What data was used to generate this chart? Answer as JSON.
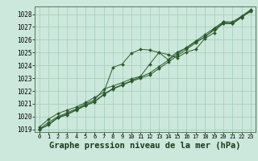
{
  "background_color": "#cce8dc",
  "grid_color": "#aacfbc",
  "line_color": "#2d5a2d",
  "marker_color": "#2d5a2d",
  "xlabel": "Graphe pression niveau de la mer (hPa)",
  "xlabel_fontsize": 7.5,
  "xlim": [
    -0.5,
    23.5
  ],
  "ylim": [
    1018.8,
    1028.6
  ],
  "yticks": [
    1019,
    1020,
    1021,
    1022,
    1023,
    1024,
    1025,
    1026,
    1027,
    1028
  ],
  "xticks": [
    0,
    1,
    2,
    3,
    4,
    5,
    6,
    7,
    8,
    9,
    10,
    11,
    12,
    13,
    14,
    15,
    16,
    17,
    18,
    19,
    20,
    21,
    22,
    23
  ],
  "series": [
    [
      1019.2,
      1019.8,
      1020.25,
      1020.5,
      1020.75,
      1021.1,
      1021.5,
      1021.9,
      1023.85,
      1024.1,
      1024.95,
      1025.25,
      1025.2,
      1025.0,
      1024.85,
      1024.6,
      1025.05,
      1025.25,
      1026.1,
      1026.55,
      1027.4,
      1027.3,
      1027.8,
      1028.2
    ],
    [
      1019.05,
      1019.55,
      1020.0,
      1020.3,
      1020.6,
      1021.0,
      1021.3,
      1022.15,
      1022.4,
      1022.65,
      1022.95,
      1023.15,
      1024.1,
      1025.0,
      1024.45,
      1025.05,
      1025.35,
      1025.85,
      1026.2,
      1026.85,
      1027.3,
      1027.25,
      1027.75,
      1028.3
    ],
    [
      1019.0,
      1019.4,
      1019.95,
      1020.2,
      1020.55,
      1020.9,
      1021.2,
      1021.75,
      1022.2,
      1022.5,
      1022.8,
      1023.1,
      1023.4,
      1023.9,
      1024.4,
      1024.9,
      1025.4,
      1025.9,
      1026.4,
      1026.9,
      1027.4,
      1027.4,
      1027.85,
      1028.35
    ],
    [
      1019.0,
      1019.35,
      1019.9,
      1020.15,
      1020.5,
      1020.85,
      1021.15,
      1021.7,
      1022.15,
      1022.45,
      1022.75,
      1023.0,
      1023.25,
      1023.75,
      1024.25,
      1024.75,
      1025.25,
      1025.75,
      1026.25,
      1026.75,
      1027.25,
      1027.25,
      1027.75,
      1028.3
    ]
  ]
}
